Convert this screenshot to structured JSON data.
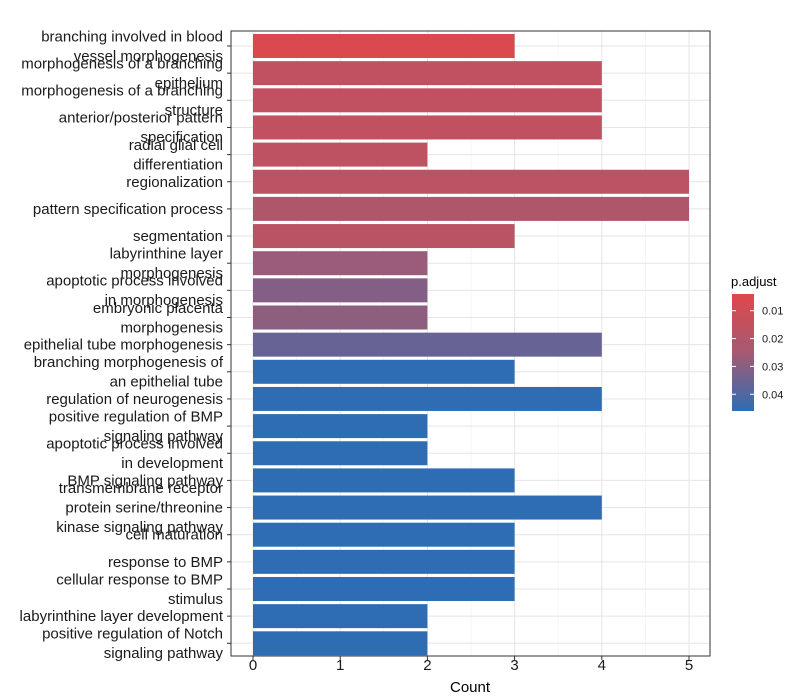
{
  "chart_data": {
    "type": "bar",
    "orientation": "horizontal",
    "xlabel": "Count",
    "ylabel": "",
    "xlim": [
      0,
      5
    ],
    "xticks": [
      0,
      1,
      2,
      3,
      4,
      5
    ],
    "grid": true,
    "legend": {
      "title": "p.adjust",
      "position": "right",
      "ticks": [
        {
          "value": 0.01,
          "label": "0.01"
        },
        {
          "value": 0.02,
          "label": "0.02"
        },
        {
          "value": 0.03,
          "label": "0.03"
        },
        {
          "value": 0.04,
          "label": "0.04"
        }
      ],
      "range": [
        0.004,
        0.046
      ],
      "low_color": "#E0474C",
      "high_color": "#2E6DB4"
    },
    "bars": [
      {
        "label": [
          "branching involved in blood",
          "vessel morphogenesis"
        ],
        "value": 3,
        "p_adjust": 0.006
      },
      {
        "label": [
          "morphogenesis of a branching",
          "epithelium"
        ],
        "value": 4,
        "p_adjust": 0.015
      },
      {
        "label": [
          "morphogenesis of a branching",
          "structure"
        ],
        "value": 4,
        "p_adjust": 0.015
      },
      {
        "label": [
          "anterior/posterior pattern",
          "specification"
        ],
        "value": 4,
        "p_adjust": 0.015
      },
      {
        "label": [
          "radial glial cell",
          "differentiation"
        ],
        "value": 2,
        "p_adjust": 0.016
      },
      {
        "label": [
          "regionalization"
        ],
        "value": 5,
        "p_adjust": 0.017
      },
      {
        "label": [
          "pattern specification process"
        ],
        "value": 5,
        "p_adjust": 0.021
      },
      {
        "label": [
          "segmentation"
        ],
        "value": 3,
        "p_adjust": 0.018
      },
      {
        "label": [
          "labyrinthine layer",
          "morphogenesis"
        ],
        "value": 2,
        "p_adjust": 0.027
      },
      {
        "label": [
          "apoptotic process involved",
          "in morphogenesis"
        ],
        "value": 2,
        "p_adjust": 0.031
      },
      {
        "label": [
          "embryonic placenta",
          "morphogenesis"
        ],
        "value": 2,
        "p_adjust": 0.029
      },
      {
        "label": [
          "epithelial tube morphogenesis"
        ],
        "value": 4,
        "p_adjust": 0.036
      },
      {
        "label": [
          "branching morphogenesis of",
          "an epithelial tube"
        ],
        "value": 3,
        "p_adjust": 0.046
      },
      {
        "label": [
          "regulation of neurogenesis"
        ],
        "value": 4,
        "p_adjust": 0.046
      },
      {
        "label": [
          "positive regulation of BMP",
          "signaling pathway"
        ],
        "value": 2,
        "p_adjust": 0.046
      },
      {
        "label": [
          "apoptotic process involved",
          "in development"
        ],
        "value": 2,
        "p_adjust": 0.046
      },
      {
        "label": [
          "BMP signaling pathway"
        ],
        "value": 3,
        "p_adjust": 0.046
      },
      {
        "label": [
          "transmembrane receptor",
          "protein serine/threonine",
          "kinase signaling pathway"
        ],
        "value": 4,
        "p_adjust": 0.046
      },
      {
        "label": [
          "cell maturation"
        ],
        "value": 3,
        "p_adjust": 0.046
      },
      {
        "label": [
          "response to BMP"
        ],
        "value": 3,
        "p_adjust": 0.046
      },
      {
        "label": [
          "cellular response to BMP",
          "stimulus"
        ],
        "value": 3,
        "p_adjust": 0.046
      },
      {
        "label": [
          "labyrinthine layer development"
        ],
        "value": 2,
        "p_adjust": 0.046
      },
      {
        "label": [
          "positive regulation of Notch",
          "signaling pathway"
        ],
        "value": 2,
        "p_adjust": 0.046
      }
    ]
  }
}
